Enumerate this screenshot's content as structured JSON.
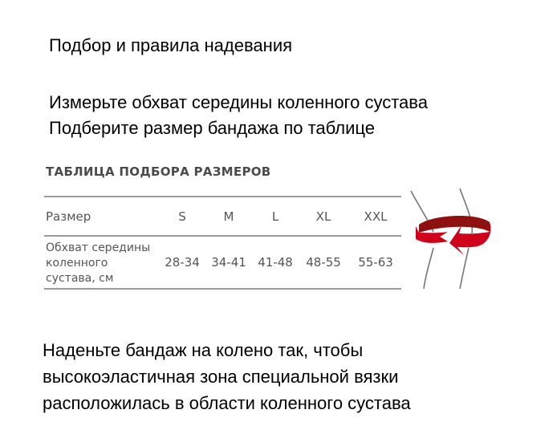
{
  "heading": "Подбор и правила надевания",
  "instructions": [
    "Измерьте обхват середины коленного сустава",
    "Подберите размер бандажа по таблице"
  ],
  "size_table": {
    "title": "ТАБЛИЦА ПОДБОРА РАЗМЕРОВ",
    "header_label": "Размер",
    "sizes": [
      "S",
      "M",
      "L",
      "XL",
      "XXL"
    ],
    "row_label_lines": [
      "Обхват середины",
      "коленного",
      "сустава, см"
    ],
    "ranges": [
      "28-34",
      "34-41",
      "41-48",
      "48-55",
      "55-63"
    ]
  },
  "illustration": {
    "icon": "knee-measure-icon",
    "accent": "#d0021b"
  },
  "footer_lines": [
    "Наденьте бандаж на колено так, чтобы",
    "высокоэластичная зона специальной вязки",
    "расположилась в области коленного сустава"
  ]
}
